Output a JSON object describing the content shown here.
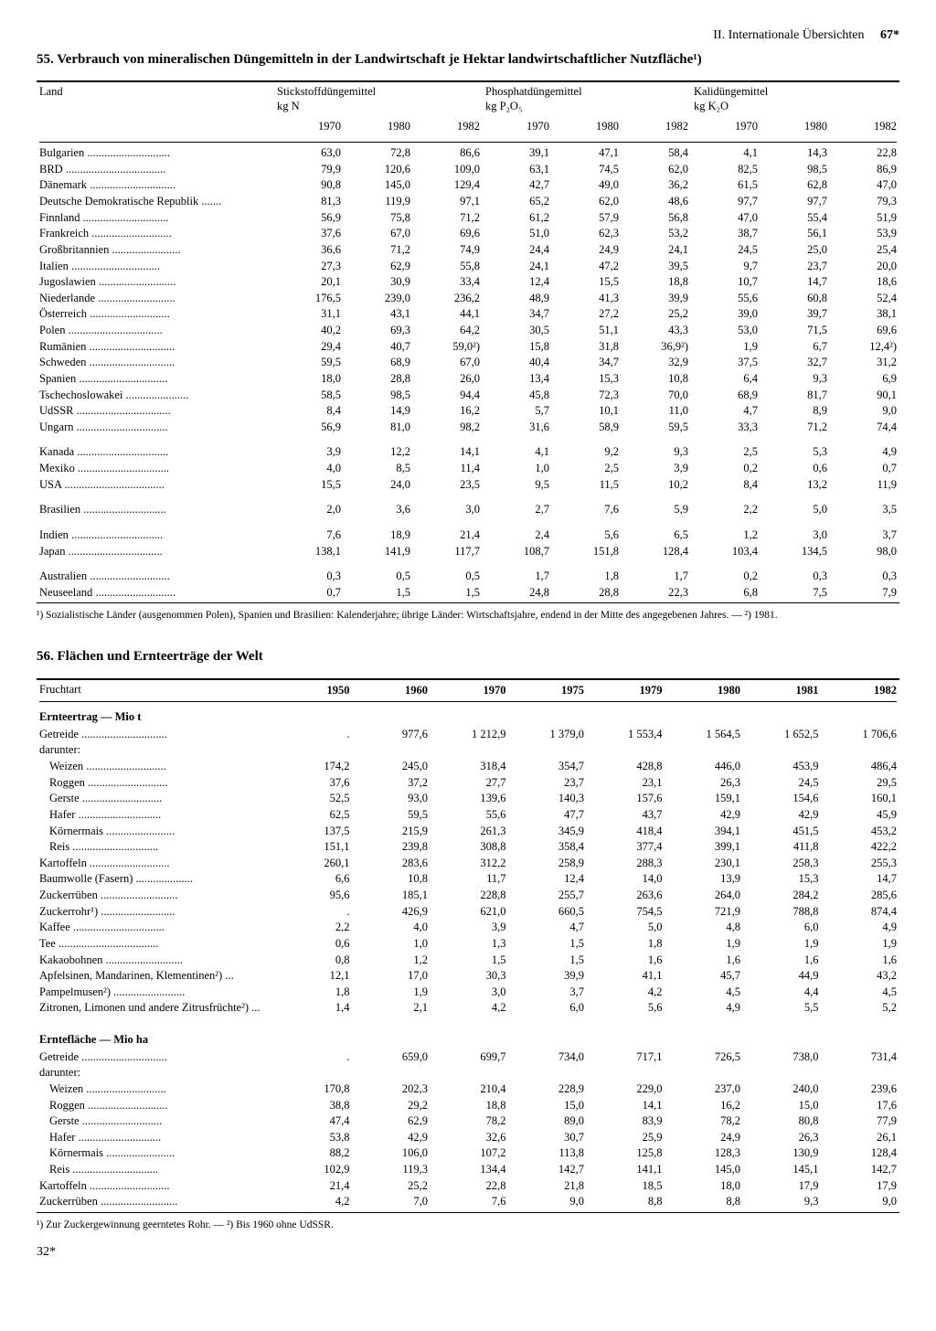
{
  "header": {
    "section": "II. Internationale Übersichten",
    "page_number": "67*"
  },
  "table55": {
    "title": "55. Verbrauch von mineralischen Düngemitteln in der Landwirtschaft je Hektar landwirtschaftlicher Nutzfläche¹)",
    "col_label": "Land",
    "groups": [
      {
        "title": "Stickstoffdüngemittel",
        "unit": "kg N"
      },
      {
        "title": "Phosphatdüngemittel",
        "unit": "kg P₂O₅"
      },
      {
        "title": "Kalidüngemittel",
        "unit": "kg K₂O"
      }
    ],
    "years": [
      "1970",
      "1980",
      "1982"
    ],
    "blocks": [
      [
        {
          "l": "Bulgarien",
          "v": [
            "63,0",
            "72,8",
            "86,6",
            "39,1",
            "47,1",
            "58,4",
            "4,1",
            "14,3",
            "22,8"
          ]
        },
        {
          "l": "BRD",
          "v": [
            "79,9",
            "120,6",
            "109,0",
            "63,1",
            "74,5",
            "62,0",
            "82,5",
            "98,5",
            "86,9"
          ]
        },
        {
          "l": "Dänemark",
          "v": [
            "90,8",
            "145,0",
            "129,4",
            "42,7",
            "49,0",
            "36,2",
            "61,5",
            "62,8",
            "47,0"
          ]
        },
        {
          "l": "Deutsche Demokratische Republik",
          "v": [
            "81,3",
            "119,9",
            "97,1",
            "65,2",
            "62,0",
            "48,6",
            "97,7",
            "97,7",
            "79,3"
          ]
        },
        {
          "l": "Finnland",
          "v": [
            "56,9",
            "75,8",
            "71,2",
            "61,2",
            "57,9",
            "56,8",
            "47,0",
            "55,4",
            "51,9"
          ]
        },
        {
          "l": "Frankreich",
          "v": [
            "37,6",
            "67,0",
            "69,6",
            "51,0",
            "62,3",
            "53,2",
            "38,7",
            "56,1",
            "53,9"
          ]
        },
        {
          "l": "Großbritannien",
          "v": [
            "36,6",
            "71,2",
            "74,9",
            "24,4",
            "24,9",
            "24,1",
            "24,5",
            "25,0",
            "25,4"
          ]
        },
        {
          "l": "Italien",
          "v": [
            "27,3",
            "62,9",
            "55,8",
            "24,1",
            "47,2",
            "39,5",
            "9,7",
            "23,7",
            "20,0"
          ]
        },
        {
          "l": "Jugoslawien",
          "v": [
            "20,1",
            "30,9",
            "33,4",
            "12,4",
            "15,5",
            "18,8",
            "10,7",
            "14,7",
            "18,6"
          ]
        },
        {
          "l": "Niederlande",
          "v": [
            "176,5",
            "239,0",
            "236,2",
            "48,9",
            "41,3",
            "39,9",
            "55,6",
            "60,8",
            "52,4"
          ]
        },
        {
          "l": "Österreich",
          "v": [
            "31,1",
            "43,1",
            "44,1",
            "34,7",
            "27,2",
            "25,2",
            "39,0",
            "39,7",
            "38,1"
          ]
        },
        {
          "l": "Polen",
          "v": [
            "40,2",
            "69,3",
            "64,2",
            "30,5",
            "51,1",
            "43,3",
            "53,0",
            "71,5",
            "69,6"
          ]
        },
        {
          "l": "Rumänien",
          "v": [
            "29,4",
            "40,7",
            "59,0²)",
            "15,8",
            "31,8",
            "36,9²)",
            "1,9",
            "6,7",
            "12,4²)"
          ]
        },
        {
          "l": "Schweden",
          "v": [
            "59,5",
            "68,9",
            "67,0",
            "40,4",
            "34,7",
            "32,9",
            "37,5",
            "32,7",
            "31,2"
          ]
        },
        {
          "l": "Spanien",
          "v": [
            "18,0",
            "28,8",
            "26,0",
            "13,4",
            "15,3",
            "10,8",
            "6,4",
            "9,3",
            "6,9"
          ]
        },
        {
          "l": "Tschechoslowakei",
          "v": [
            "58,5",
            "98,5",
            "94,4",
            "45,8",
            "72,3",
            "70,0",
            "68,9",
            "81,7",
            "90,1"
          ]
        },
        {
          "l": "UdSSR",
          "v": [
            "8,4",
            "14,9",
            "16,2",
            "5,7",
            "10,1",
            "11,0",
            "4,7",
            "8,9",
            "9,0"
          ]
        },
        {
          "l": "Ungarn",
          "v": [
            "56,9",
            "81,0",
            "98,2",
            "31,6",
            "58,9",
            "59,5",
            "33,3",
            "71,2",
            "74,4"
          ]
        }
      ],
      [
        {
          "l": "Kanada",
          "v": [
            "3,9",
            "12,2",
            "14,1",
            "4,1",
            "9,2",
            "9,3",
            "2,5",
            "5,3",
            "4,9"
          ]
        },
        {
          "l": "Mexiko",
          "v": [
            "4,0",
            "8,5",
            "11,4",
            "1,0",
            "2,5",
            "3,9",
            "0,2",
            "0,6",
            "0,7"
          ]
        },
        {
          "l": "USA",
          "v": [
            "15,5",
            "24,0",
            "23,5",
            "9,5",
            "11,5",
            "10,2",
            "8,4",
            "13,2",
            "11,9"
          ]
        }
      ],
      [
        {
          "l": "Brasilien",
          "v": [
            "2,0",
            "3,6",
            "3,0",
            "2,7",
            "7,6",
            "5,9",
            "2,2",
            "5,0",
            "3,5"
          ]
        }
      ],
      [
        {
          "l": "Indien",
          "v": [
            "7,6",
            "18,9",
            "21,4",
            "2,4",
            "5,6",
            "6,5",
            "1,2",
            "3,0",
            "3,7"
          ]
        },
        {
          "l": "Japan",
          "v": [
            "138,1",
            "141,9",
            "117,7",
            "108,7",
            "151,8",
            "128,4",
            "103,4",
            "134,5",
            "98,0"
          ]
        }
      ],
      [
        {
          "l": "Australien",
          "v": [
            "0,3",
            "0,5",
            "0,5",
            "1,7",
            "1,8",
            "1,7",
            "0,2",
            "0,3",
            "0,3"
          ]
        },
        {
          "l": "Neuseeland",
          "v": [
            "0,7",
            "1,5",
            "1,5",
            "24,8",
            "28,8",
            "22,3",
            "6,8",
            "7,5",
            "7,9"
          ]
        }
      ]
    ],
    "footnote": "¹) Sozialistische Länder (ausgenommen Polen), Spanien und Brasilien: Kalenderjahre; übrige Länder: Wirtschaftsjahre, endend in der Mitte des angegebenen Jahres. — ²) 1981."
  },
  "table56": {
    "title": "56. Flächen und Ernteerträge der Welt",
    "col_label": "Fruchtart",
    "years": [
      "1950",
      "1960",
      "1970",
      "1975",
      "1979",
      "1980",
      "1981",
      "1982"
    ],
    "sections": [
      {
        "heading": "Ernteertrag — Mio t",
        "rows": [
          {
            "l": "Getreide",
            "v": [
              ".",
              "977,6",
              "1 212,9",
              "1 379,0",
              "1 553,4",
              "1 564,5",
              "1 652,5",
              "1 706,6"
            ]
          },
          {
            "l": "darunter:",
            "sub": true
          },
          {
            "l": "Weizen",
            "indent": true,
            "v": [
              "174,2",
              "245,0",
              "318,4",
              "354,7",
              "428,8",
              "446,0",
              "453,9",
              "486,4"
            ]
          },
          {
            "l": "Roggen",
            "indent": true,
            "v": [
              "37,6",
              "37,2",
              "27,7",
              "23,7",
              "23,1",
              "26,3",
              "24,5",
              "29,5"
            ]
          },
          {
            "l": "Gerste",
            "indent": true,
            "v": [
              "52,5",
              "93,0",
              "139,6",
              "140,3",
              "157,6",
              "159,1",
              "154,6",
              "160,1"
            ]
          },
          {
            "l": "Hafer",
            "indent": true,
            "v": [
              "62,5",
              "59,5",
              "55,6",
              "47,7",
              "43,7",
              "42,9",
              "42,9",
              "45,9"
            ]
          },
          {
            "l": "Körnermais",
            "indent": true,
            "v": [
              "137,5",
              "215,9",
              "261,3",
              "345,9",
              "418,4",
              "394,1",
              "451,5",
              "453,2"
            ]
          },
          {
            "l": "Reis",
            "indent": true,
            "v": [
              "151,1",
              "239,8",
              "308,8",
              "358,4",
              "377,4",
              "399,1",
              "411,8",
              "422,2"
            ]
          },
          {
            "l": "Kartoffeln",
            "v": [
              "260,1",
              "283,6",
              "312,2",
              "258,9",
              "288,3",
              "230,1",
              "258,3",
              "255,3"
            ]
          },
          {
            "l": "Baumwolle (Fasern)",
            "v": [
              "6,6",
              "10,8",
              "11,7",
              "12,4",
              "14,0",
              "13,9",
              "15,3",
              "14,7"
            ]
          },
          {
            "l": "Zuckerrüben",
            "v": [
              "95,6",
              "185,1",
              "228,8",
              "255,7",
              "263,6",
              "264,0",
              "284,2",
              "285,6"
            ]
          },
          {
            "l": "Zuckerrohr¹)",
            "v": [
              ".",
              "426,9",
              "621,0",
              "660,5",
              "754,5",
              "721,9",
              "788,8",
              "874,4"
            ]
          },
          {
            "l": "Kaffee",
            "v": [
              "2,2",
              "4,0",
              "3,9",
              "4,7",
              "5,0",
              "4,8",
              "6,0",
              "4,9"
            ]
          },
          {
            "l": "Tee",
            "v": [
              "0,6",
              "1,0",
              "1,3",
              "1,5",
              "1,8",
              "1,9",
              "1,9",
              "1,9"
            ]
          },
          {
            "l": "Kakaobohnen",
            "v": [
              "0,8",
              "1,2",
              "1,5",
              "1,5",
              "1,6",
              "1,6",
              "1,6",
              "1,6"
            ]
          },
          {
            "l": "Apfelsinen, Mandarinen, Klementinen²)",
            "v": [
              "12,1",
              "17,0",
              "30,3",
              "39,9",
              "41,1",
              "45,7",
              "44,9",
              "43,2"
            ]
          },
          {
            "l": "Pampelmusen²)",
            "v": [
              "1,8",
              "1,9",
              "3,0",
              "3,7",
              "4,2",
              "4,5",
              "4,4",
              "4,5"
            ]
          },
          {
            "l": "Zitronen, Limonen und andere Zitrusfrüchte²)",
            "wrap": true,
            "v": [
              "1,4",
              "2,1",
              "4,2",
              "6,0",
              "5,6",
              "4,9",
              "5,5",
              "5,2"
            ]
          }
        ]
      },
      {
        "heading": "Erntefläche — Mio ha",
        "rows": [
          {
            "l": "Getreide",
            "v": [
              ".",
              "659,0",
              "699,7",
              "734,0",
              "717,1",
              "726,5",
              "738,0",
              "731,4"
            ]
          },
          {
            "l": "darunter:",
            "sub": true
          },
          {
            "l": "Weizen",
            "indent": true,
            "v": [
              "170,8",
              "202,3",
              "210,4",
              "228,9",
              "229,0",
              "237,0",
              "240,0",
              "239,6"
            ]
          },
          {
            "l": "Roggen",
            "indent": true,
            "v": [
              "38,8",
              "29,2",
              "18,8",
              "15,0",
              "14,1",
              "16,2",
              "15,0",
              "17,6"
            ]
          },
          {
            "l": "Gerste",
            "indent": true,
            "v": [
              "47,4",
              "62,9",
              "78,2",
              "89,0",
              "83,9",
              "78,2",
              "80,8",
              "77,9"
            ]
          },
          {
            "l": "Hafer",
            "indent": true,
            "v": [
              "53,8",
              "42,9",
              "32,6",
              "30,7",
              "25,9",
              "24,9",
              "26,3",
              "26,1"
            ]
          },
          {
            "l": "Körnermais",
            "indent": true,
            "v": [
              "88,2",
              "106,0",
              "107,2",
              "113,8",
              "125,8",
              "128,3",
              "130,9",
              "128,4"
            ]
          },
          {
            "l": "Reis",
            "indent": true,
            "v": [
              "102,9",
              "119,3",
              "134,4",
              "142,7",
              "141,1",
              "145,0",
              "145,1",
              "142,7"
            ]
          },
          {
            "l": "Kartoffeln",
            "v": [
              "21,4",
              "25,2",
              "22,8",
              "21,8",
              "18,5",
              "18,0",
              "17,9",
              "17,9"
            ]
          },
          {
            "l": "Zuckerrüben",
            "v": [
              "4,2",
              "7,0",
              "7,6",
              "9,0",
              "8,8",
              "8,8",
              "9,3",
              "9,0"
            ]
          }
        ]
      }
    ],
    "footnote": "¹) Zur Zuckergewinnung geerntetes Rohr. — ²) Bis 1960 ohne UdSSR."
  },
  "page_bottom": "32*"
}
